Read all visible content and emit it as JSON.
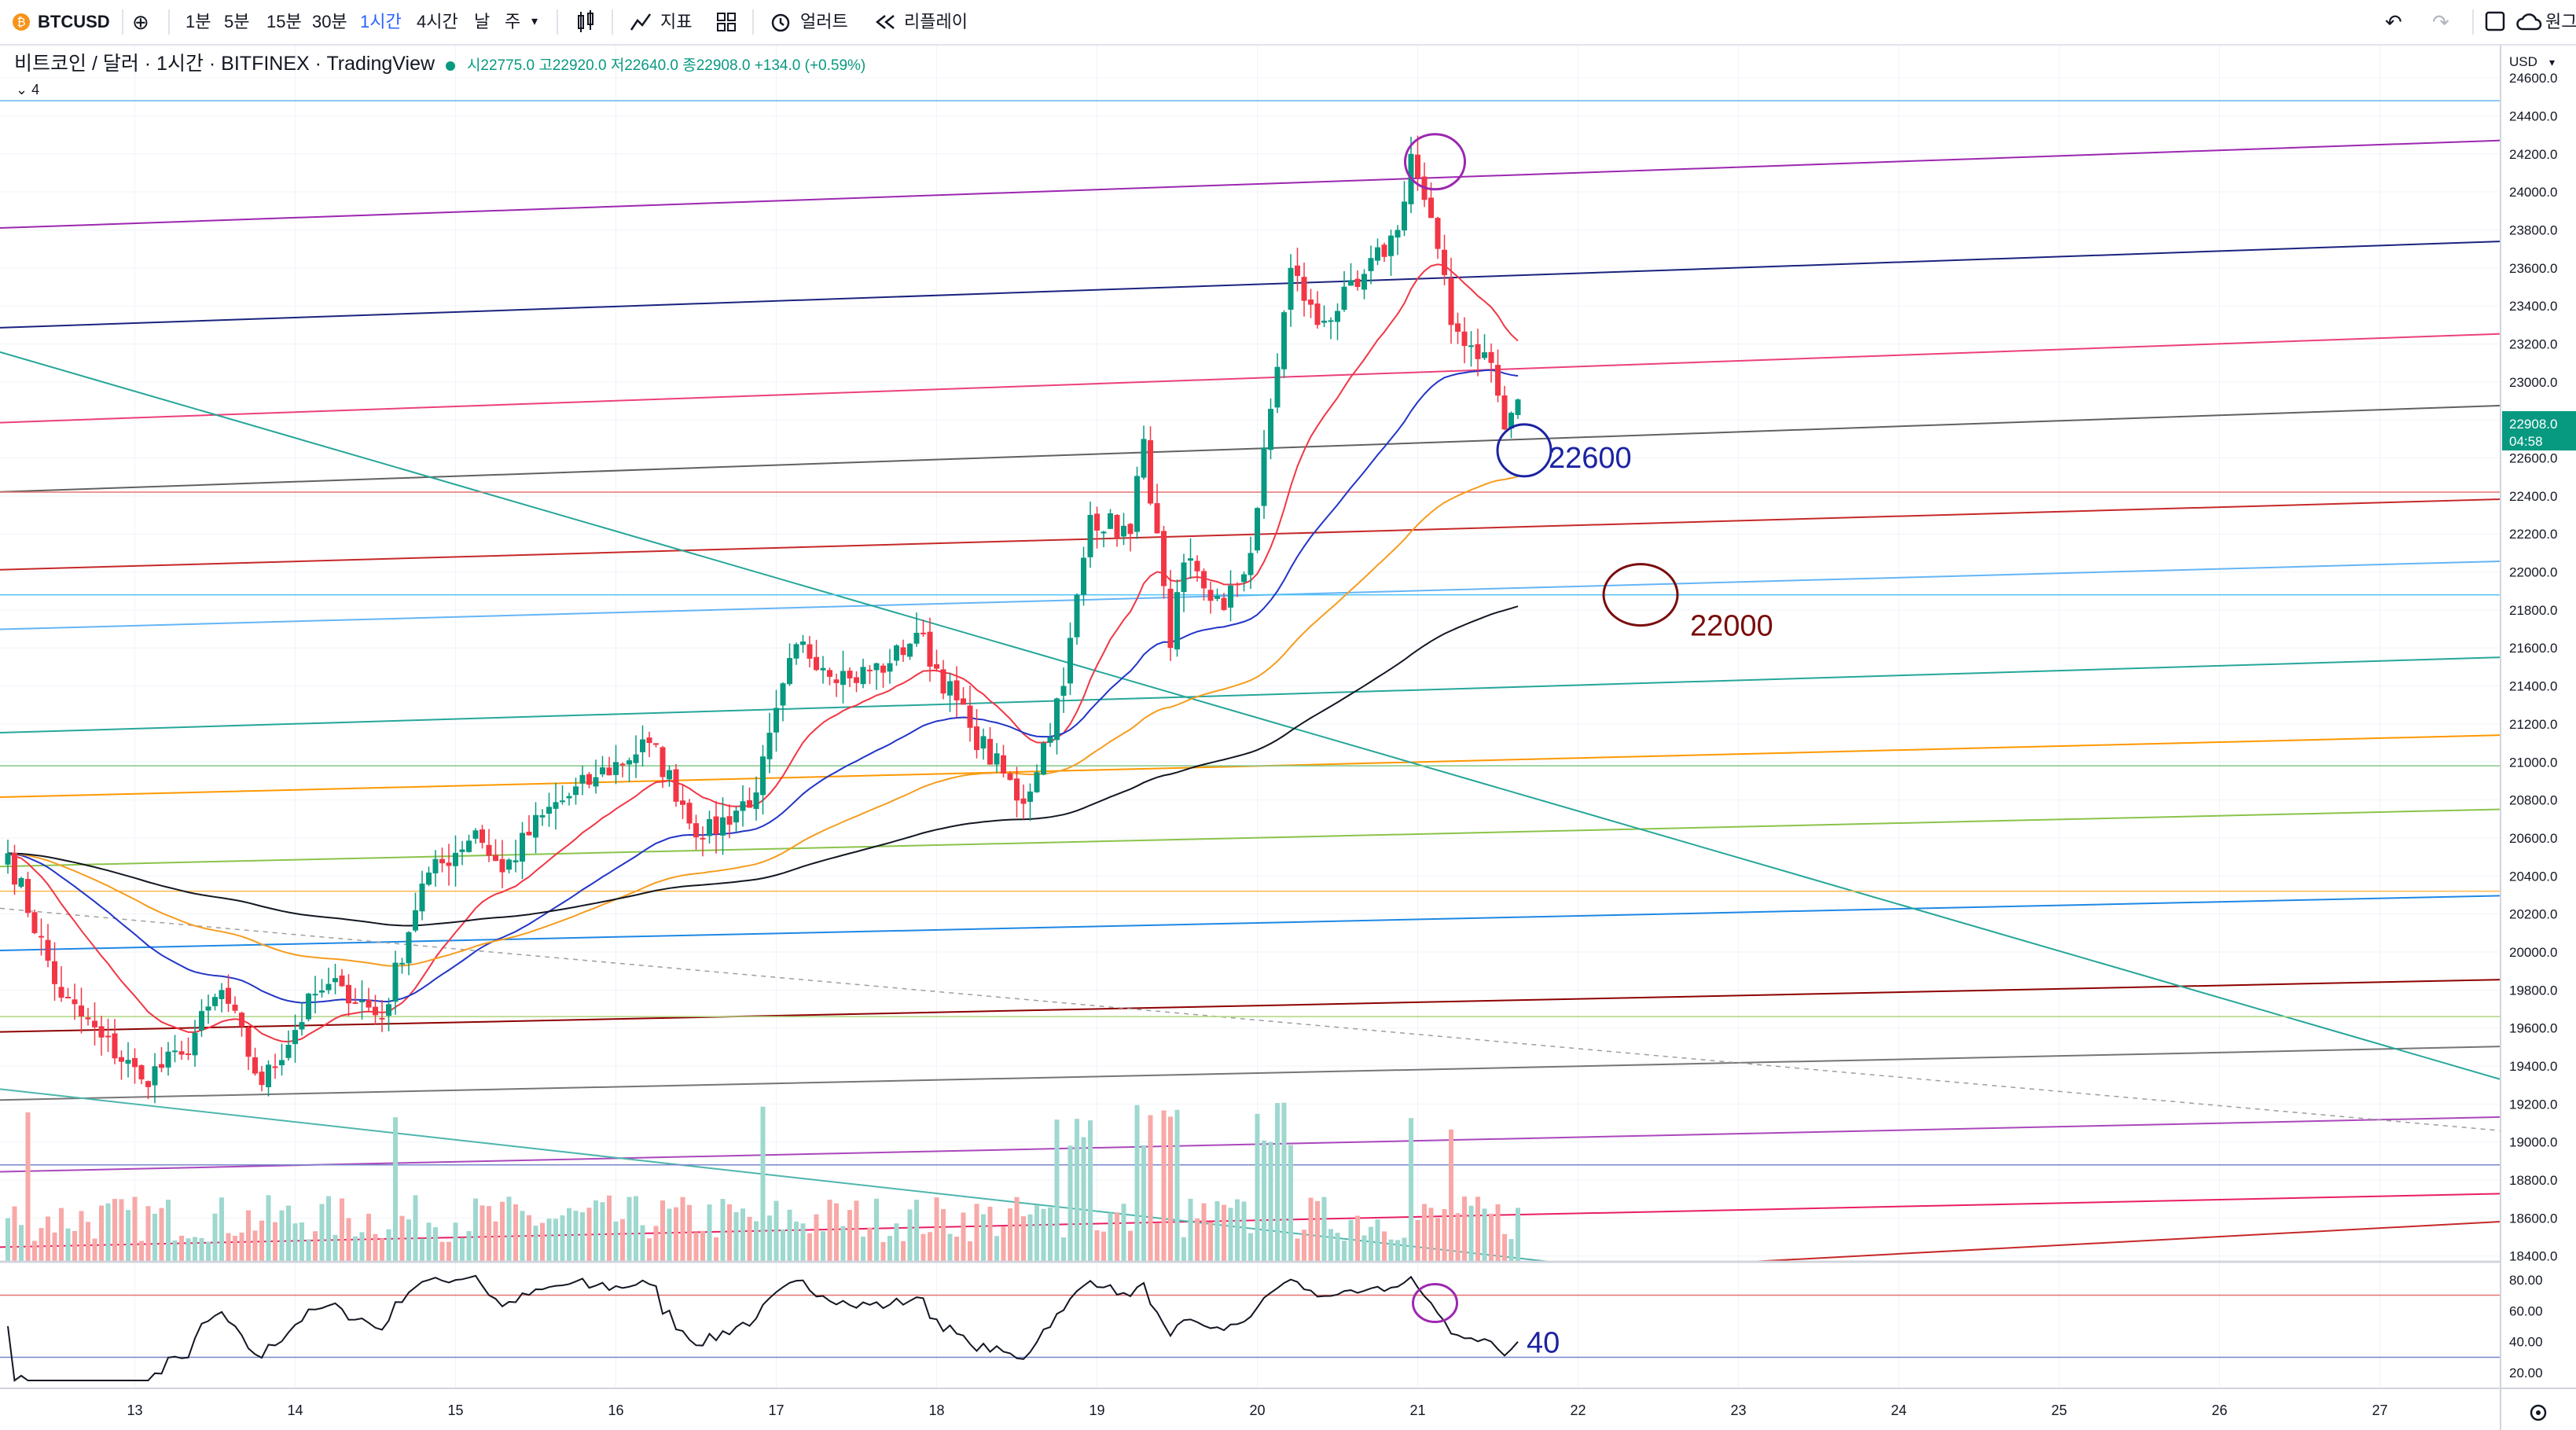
{
  "toolbar": {
    "symbol": "BTCUSD",
    "intervals": [
      "1분",
      "5분",
      "15분",
      "30분",
      "1시간",
      "4시간",
      "날",
      "주"
    ],
    "active_interval": "1시간",
    "indicators_label": "지표",
    "alerts_label": "얼러트",
    "replay_label": "리플레이",
    "cloud_label": "원그"
  },
  "legend": {
    "title": "비트코인 / 달러 · 1시간 · BITFINEX · TradingView",
    "ohlc": "시22775.0 고22920.0 저22640.0 종22908.0 +134.0 (+0.59%)",
    "collapsed_count": "4"
  },
  "price_scale": {
    "currency": "USD",
    "last_price": "22908.0",
    "countdown": "04:58"
  },
  "chart_data": {
    "type": "candlestick",
    "title": "비트코인 / 달러 · 1시간 · BITFINEX · TradingView",
    "y_ticks": [
      18400,
      18600,
      18800,
      19000,
      19200,
      19400,
      19600,
      19800,
      20000,
      20200,
      20400,
      20600,
      20800,
      21000,
      21200,
      21400,
      21600,
      21800,
      22000,
      22200,
      22400,
      22600,
      22800,
      23000,
      23200,
      23400,
      23600,
      23800,
      24000,
      24200,
      24400,
      24600
    ],
    "ylim": [
      18370,
      24770
    ],
    "x_ticks": [
      "13",
      "14",
      "15",
      "16",
      "17",
      "18",
      "19",
      "20",
      "21",
      "22",
      "23",
      "24",
      "25",
      "26",
      "27"
    ],
    "last": {
      "open": 22775,
      "high": 22920,
      "low": 22640,
      "close": 22908,
      "change": "+134.0 (+0.59%)"
    },
    "close_series_anchors": [
      [
        0,
        20520
      ],
      [
        8,
        19760
      ],
      [
        14,
        19550
      ],
      [
        20,
        19330
      ],
      [
        26,
        19460
      ],
      [
        32,
        19800
      ],
      [
        38,
        19300
      ],
      [
        46,
        19780
      ],
      [
        50,
        19820
      ],
      [
        56,
        19650
      ],
      [
        62,
        20360
      ],
      [
        70,
        20640
      ],
      [
        74,
        20420
      ],
      [
        80,
        20720
      ],
      [
        88,
        20920
      ],
      [
        96,
        21100
      ],
      [
        104,
        20600
      ],
      [
        112,
        20840
      ],
      [
        118,
        21620
      ],
      [
        126,
        21440
      ],
      [
        132,
        21520
      ],
      [
        136,
        21680
      ],
      [
        144,
        21180
      ],
      [
        152,
        20780
      ],
      [
        158,
        21400
      ],
      [
        162,
        22300
      ],
      [
        168,
        22200
      ],
      [
        170,
        22700
      ],
      [
        174,
        21600
      ],
      [
        176,
        22050
      ],
      [
        182,
        21800
      ],
      [
        186,
        22100
      ],
      [
        192,
        23600
      ],
      [
        196,
        23300
      ],
      [
        202,
        23500
      ],
      [
        208,
        23800
      ],
      [
        210,
        24200
      ],
      [
        214,
        23700
      ],
      [
        216,
        23300
      ],
      [
        222,
        23100
      ],
      [
        224,
        22750
      ],
      [
        226,
        22908
      ]
    ],
    "annotations": [
      {
        "text": "22600",
        "color": "#1b23a3"
      },
      {
        "text": "22000",
        "color": "#7a0c0c"
      },
      {
        "text": "40",
        "color": "#1b23a3"
      }
    ],
    "rsi": {
      "y_ticks": [
        20,
        40,
        60,
        80
      ],
      "ylim": [
        14,
        86
      ],
      "upper_band": 70,
      "lower_band": 30,
      "last": 40
    },
    "horizontal_levels": [
      24480,
      22420,
      21880,
      20980,
      20320,
      19660,
      18880
    ],
    "colors": {
      "up": "#089981",
      "down": "#f23645",
      "ema20": "#f23645",
      "ema50": "#2235c7",
      "ema100": "#f59d1f",
      "ema200": "#131722"
    }
  }
}
